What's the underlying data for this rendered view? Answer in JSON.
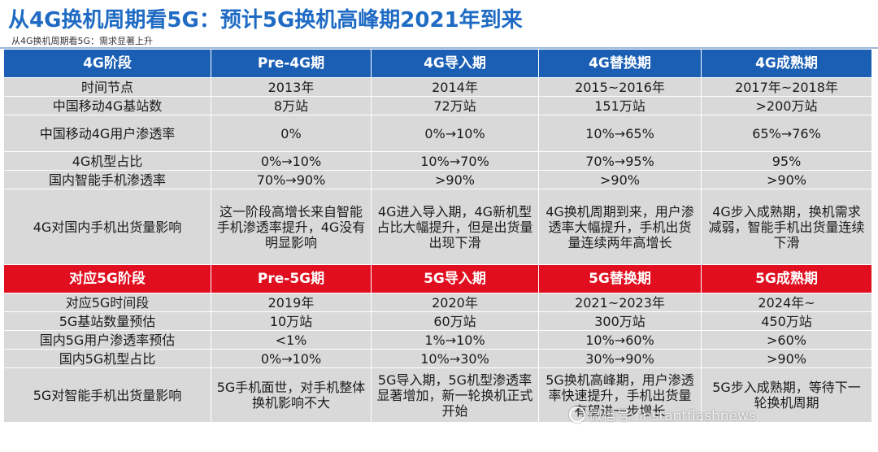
{
  "title": "从4G换机周期看5G：预计5G换机高峰期2021年到来",
  "subtitle": "从4G换机周期看5G：需求显著上升",
  "header_4g": [
    "4G阶段",
    "Pre-4G期",
    "4G导入期",
    "4G替换期",
    "4G成熟期"
  ],
  "rows_4g": [
    {
      "label": "时间节点",
      "values": [
        "2013年",
        "2014年",
        "2015~2016年",
        "2017年~2018年"
      ]
    },
    {
      "label": "中国移动4G基站数",
      "values": [
        "8万站",
        "72万站",
        "151万站",
        ">200万站"
      ]
    },
    {
      "label": "中国移动4G用户渗透率",
      "values": [
        "0%",
        "0%→10%",
        "10%→65%",
        "65%→76%"
      ]
    },
    {
      "label": "4G机型占比",
      "values": [
        "0%→10%",
        "10%→70%",
        "70%→95%",
        "95%"
      ]
    },
    {
      "label": "国内智能手机渗透率",
      "values": [
        "70%→90%",
        ">90%",
        ">90%",
        ">90%"
      ]
    },
    {
      "label": "4G对国内手机出货量影响",
      "values": [
        "这一阶段高增长来自智能手机渗透率提升，4G没有明显影响",
        "4G进入导入期，4G新机型占比大幅提升，但是出货量出现下滑",
        "4G换机周期到来，用户渗透率大幅提升，手机出货量连续两年高增长",
        "4G步入成熟期，换机需求减弱，智能手机出货量连续下滑"
      ]
    }
  ],
  "header_5g": [
    "对应5G阶段",
    "Pre-5G期",
    "5G导入期",
    "5G替换期",
    "5G成熟期"
  ],
  "rows_5g": [
    {
      "label": "对应5G时间段",
      "values": [
        "2019年",
        "2020年",
        "2021~2023年",
        "2024年~"
      ]
    },
    {
      "label": "5G基站数量预估",
      "values": [
        "10万站",
        "60万站",
        "300万站",
        "450万站"
      ]
    },
    {
      "label": "国内5G用户渗透率预估",
      "values": [
        "<1%",
        "1%→10%",
        "10%→60%",
        ">60%"
      ]
    },
    {
      "label": "国内5G机型占比",
      "values": [
        "0%→10%",
        "10%→30%",
        "30%→90%",
        ">90%"
      ]
    },
    {
      "label": "5G对智能手机出货量影响",
      "values": [
        "5G手机面世，对手机整体换机影响不大",
        "5G导入期，5G机型渗透率显著增加，新一轮换机正式开始",
        "5G换机高峰期，用户渗透率快速提升，手机出货量有望进一步增长",
        "5G步入成熟期，等待下一轮换机周期"
      ]
    }
  ],
  "watermark": "微信号: instantflashnews",
  "colors": {
    "title": "#1f6bc4",
    "header_4g_bg": "#1a5fb4",
    "header_5g_bg": "#e00e1e",
    "cell_bg": "#d9d9d9"
  }
}
